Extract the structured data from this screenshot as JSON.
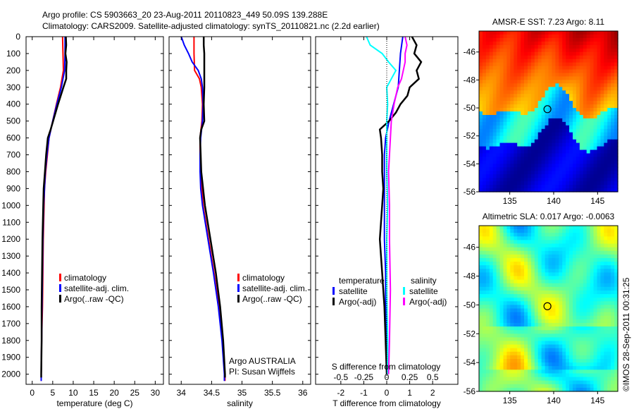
{
  "title_line1": "Argo profile: CS 5903663_20 23-Aug-2011 20110823_449 50.09S 139.288E",
  "title_line2": "Climatology: CARS2009. Satellite-adjusted climatology: synTS_20110821.nc (2.2d earlier)",
  "timestamp": "©IMOS 28-Sep-2011 00:31:25",
  "credits": [
    "Argo AUSTRALIA",
    "PI: Susan Wijffels"
  ],
  "colors": {
    "climatology": "#ff0000",
    "satellite": "#0000ff",
    "argo": "#000000",
    "s_satellite": "#00ffff",
    "s_argo": "#ff00ff"
  },
  "chart_data": [
    {
      "type": "line",
      "id": "temperature",
      "xlabel": "temperature (deg C)",
      "xlim": [
        -1.5,
        32
      ],
      "xticks": [
        0,
        5,
        10,
        15,
        20,
        25,
        30
      ],
      "ylim": [
        0,
        2060
      ],
      "yticks": [
        0,
        100,
        200,
        300,
        400,
        500,
        600,
        700,
        800,
        900,
        1000,
        1100,
        1200,
        1300,
        1400,
        1500,
        1600,
        1700,
        1800,
        1900,
        2000
      ],
      "yreversed": true,
      "legend": [
        "climatology",
        "satellite-adj. clim.",
        "Argo(..raw -QC)"
      ],
      "series": [
        {
          "name": "climatology",
          "color": "#ff0000",
          "depth": [
            0,
            100,
            200,
            300,
            400,
            500,
            600,
            700,
            800,
            900,
            1000,
            1200,
            1400,
            1600,
            1800,
            2000,
            2040
          ],
          "value": [
            7.4,
            7.5,
            7.6,
            6.9,
            5.9,
            5.0,
            4.1,
            3.7,
            3.3,
            3.0,
            2.9,
            2.7,
            2.6,
            2.5,
            2.3,
            2.2,
            2.2
          ]
        },
        {
          "name": "satellite-adj. clim.",
          "color": "#0000ff",
          "depth": [
            0,
            100,
            200,
            300,
            400,
            500,
            600,
            700,
            800,
            900,
            1000,
            1200,
            1400,
            1600,
            1800,
            2000,
            2040
          ],
          "value": [
            8.0,
            8.0,
            7.9,
            7.1,
            6.0,
            5.0,
            4.1,
            3.6,
            3.2,
            3.0,
            2.8,
            2.6,
            2.5,
            2.4,
            2.3,
            2.2,
            2.2
          ]
        },
        {
          "name": "Argo(..raw -QC)",
          "color": "#000000",
          "depth": [
            0,
            50,
            100,
            150,
            200,
            250,
            300,
            400,
            500,
            550,
            600,
            700,
            800,
            900,
            1000,
            1200,
            1400,
            1600,
            1800,
            2000,
            2020
          ],
          "value": [
            8.2,
            8.3,
            8.1,
            8.4,
            8.3,
            8.3,
            7.6,
            6.3,
            5.1,
            4.5,
            3.8,
            3.4,
            3.1,
            2.8,
            2.7,
            2.5,
            2.4,
            2.3,
            2.3,
            2.2,
            2.2
          ]
        }
      ]
    },
    {
      "type": "line",
      "id": "salinity",
      "xlabel": "salinity",
      "xlim": [
        33.8,
        36.13
      ],
      "xticks": [
        34,
        34.5,
        35,
        35.5,
        36
      ],
      "ylim": [
        0,
        2060
      ],
      "yreversed": true,
      "legend": [
        "climatology",
        "satellite-adj. clim.",
        "Argo(..raw -QC)"
      ],
      "series": [
        {
          "name": "climatology",
          "color": "#ff0000",
          "depth": [
            0,
            100,
            200,
            250,
            300,
            400,
            500,
            600,
            700,
            800,
            900,
            1000,
            1200,
            1400,
            1600,
            1800,
            2000,
            2040
          ],
          "value": [
            34.21,
            34.21,
            34.22,
            34.3,
            34.33,
            34.35,
            34.34,
            34.31,
            34.31,
            34.32,
            34.34,
            34.36,
            34.45,
            34.54,
            34.62,
            34.68,
            34.72,
            34.72
          ]
        },
        {
          "name": "satellite-adj. clim.",
          "color": "#0000ff",
          "depth": [
            0,
            50,
            100,
            150,
            200,
            250,
            300,
            400,
            500,
            600,
            700,
            800,
            900,
            1000,
            1200,
            1400,
            1600,
            1800,
            2000,
            2040
          ],
          "value": [
            34.0,
            34.05,
            34.12,
            34.18,
            34.28,
            34.33,
            34.35,
            34.36,
            34.35,
            34.32,
            34.31,
            34.31,
            34.32,
            34.35,
            34.44,
            34.53,
            34.61,
            34.67,
            34.71,
            34.71
          ]
        },
        {
          "name": "Argo(..raw -QC)",
          "color": "#000000",
          "depth": [
            0,
            50,
            100,
            200,
            300,
            400,
            500,
            550,
            600,
            700,
            800,
            900,
            1000,
            1200,
            1400,
            1600,
            1800,
            2000,
            2020
          ],
          "value": [
            34.37,
            34.37,
            34.38,
            34.38,
            34.38,
            34.37,
            34.38,
            34.33,
            34.31,
            34.32,
            34.33,
            34.36,
            34.39,
            34.48,
            34.57,
            34.64,
            34.69,
            34.72,
            34.72
          ]
        }
      ]
    },
    {
      "type": "line",
      "id": "difference",
      "xlabel": "T difference from climatology",
      "xlabel_top": "S difference from climatology",
      "xlim": [
        -3.1,
        3.1
      ],
      "xticks": [
        -2,
        -1,
        0,
        1,
        2
      ],
      "s_xticks": [
        -0.5,
        -0.25,
        0,
        0.25,
        0.5
      ],
      "s_tick_labels": [
        "-0.5",
        "-0.25",
        "0",
        "0.25",
        "0.5"
      ],
      "s_scale": 0.25,
      "ylim": [
        0,
        2060
      ],
      "yreversed": true,
      "legend_temperature": {
        "title": "temperature",
        "items": [
          "satellite",
          "Argo(-adj)"
        ]
      },
      "legend_salinity": {
        "title": "salinity",
        "items": [
          "satellite",
          "Argo(-adj)"
        ]
      },
      "series": [
        {
          "name": "T satellite",
          "color": "#0000ff",
          "kind": "T",
          "depth": [
            0,
            100,
            200,
            300,
            400,
            500,
            600,
            700,
            800,
            1000,
            1200,
            1400,
            1600,
            1800,
            2000
          ],
          "value": [
            0.7,
            0.6,
            0.55,
            0.5,
            0.3,
            0.1,
            -0.05,
            -0.1,
            -0.1,
            -0.1,
            -0.1,
            -0.05,
            -0.05,
            0,
            0
          ]
        },
        {
          "name": "T Argo(-adj)",
          "color": "#000000",
          "kind": "T",
          "depth": [
            0,
            50,
            100,
            150,
            200,
            250,
            300,
            350,
            400,
            450,
            500,
            550,
            600,
            700,
            800,
            900,
            1000,
            1200,
            1400,
            1600,
            1800,
            2000
          ],
          "value": [
            1.1,
            1.3,
            1.2,
            1.5,
            1.3,
            1.4,
            1.0,
            0.9,
            0.6,
            0.4,
            0.1,
            -0.3,
            -0.25,
            -0.2,
            -0.2,
            -0.15,
            -0.2,
            -0.3,
            -0.2,
            -0.1,
            -0.05,
            0
          ]
        },
        {
          "name": "S satellite",
          "color": "#00ffff",
          "kind": "S",
          "depth": [
            0,
            50,
            100,
            150,
            200,
            250,
            300,
            400,
            500,
            600,
            800,
            1000,
            1200,
            1500,
            1800,
            2000
          ],
          "value": [
            -0.22,
            -0.18,
            -0.05,
            0.02,
            0.1,
            0.05,
            0.0,
            0.01,
            0.0,
            0.0,
            0.0,
            0.01,
            0.0,
            0.0,
            0.01,
            0.01
          ]
        },
        {
          "name": "S Argo(-adj)",
          "color": "#ff00ff",
          "kind": "S",
          "depth": [
            0,
            50,
            100,
            150,
            200,
            250,
            300,
            400,
            500,
            600,
            800,
            1000,
            1200,
            1500,
            1800,
            2000
          ],
          "value": [
            0.2,
            0.22,
            0.2,
            0.2,
            0.18,
            0.16,
            0.12,
            0.08,
            0.05,
            0.04,
            0.02,
            0.03,
            0.03,
            0.04,
            0.03,
            0.02
          ]
        }
      ]
    },
    {
      "type": "heatmap",
      "id": "sst-map",
      "title": "AMSR-E SST: 7.23 Argo: 8.11",
      "xlim": [
        131.5,
        147.3
      ],
      "xticks": [
        135,
        140,
        145
      ],
      "ylim": [
        -56,
        -44.5
      ],
      "yticks": [
        -46,
        -48,
        -50,
        -52,
        -54,
        -56
      ],
      "marker": {
        "lon": 139.288,
        "lat": -50.09
      }
    },
    {
      "type": "heatmap",
      "id": "sla-map",
      "title": "Altimetric SLA: 0.017 Argo: -0.0063",
      "xlim": [
        131.5,
        147.3
      ],
      "xticks": [
        135,
        140,
        145
      ],
      "ylim": [
        -56,
        -44.5
      ],
      "yticks": [
        -46,
        -48,
        -50,
        -52,
        -54,
        -56
      ],
      "marker": {
        "lon": 139.288,
        "lat": -50.09
      }
    }
  ]
}
